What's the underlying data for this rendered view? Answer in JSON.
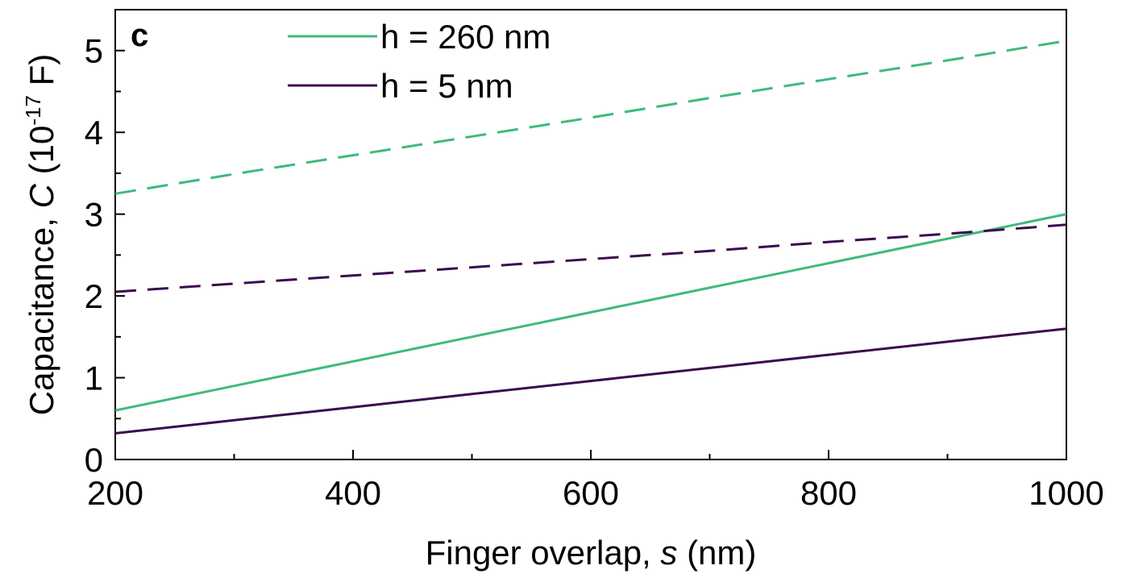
{
  "chart_data": {
    "type": "line",
    "panel_label": "c",
    "xlabel": {
      "prefix": "Finger overlap, ",
      "symbol": "s",
      "suffix": " (nm)"
    },
    "ylabel": {
      "prefix": "Capacitance, ",
      "symbol": "C",
      "unit_open": " (10",
      "unit_exp": "-17",
      "unit_close": " F)"
    },
    "xlim": [
      200,
      1000
    ],
    "ylim": [
      0,
      5.5
    ],
    "xticks": [
      200,
      400,
      600,
      800,
      1000
    ],
    "xticks_minor": [
      300,
      500,
      700,
      900
    ],
    "yticks": [
      0,
      1,
      2,
      3,
      4,
      5
    ],
    "yticks_minor": [
      0.5,
      1.5,
      2.5,
      3.5,
      4.5
    ],
    "legend": {
      "placement": "top-left",
      "entries": [
        {
          "label": "h = 260 nm",
          "color": "#3dba7d"
        },
        {
          "label": "h = 5 nm",
          "color": "#3b0a4f"
        }
      ]
    },
    "series": [
      {
        "h": "260 nm",
        "style": "solid",
        "color": "#3dba7d",
        "x": [
          200,
          300,
          400,
          500,
          600,
          700,
          800,
          900,
          1000
        ],
        "values": [
          0.6,
          0.9,
          1.2,
          1.5,
          1.8,
          2.1,
          2.4,
          2.7,
          3.0
        ]
      },
      {
        "h": "5 nm",
        "style": "solid",
        "color": "#3b0a4f",
        "x": [
          200,
          300,
          400,
          500,
          600,
          700,
          800,
          900,
          1000
        ],
        "values": [
          0.32,
          0.48,
          0.64,
          0.8,
          0.96,
          1.12,
          1.28,
          1.44,
          1.6
        ]
      },
      {
        "h": "260 nm",
        "style": "dashed",
        "color": "#3dba7d",
        "x": [
          200,
          300,
          400,
          500,
          600,
          700,
          800,
          900,
          1000
        ],
        "values": [
          3.25,
          3.49,
          3.72,
          3.95,
          4.18,
          4.42,
          4.65,
          4.88,
          5.12
        ]
      },
      {
        "h": "5 nm",
        "style": "dashed",
        "color": "#3b0a4f",
        "x": [
          200,
          300,
          400,
          500,
          600,
          700,
          800,
          900,
          1000
        ],
        "values": [
          2.05,
          2.15,
          2.25,
          2.35,
          2.45,
          2.55,
          2.66,
          2.76,
          2.87
        ]
      }
    ]
  }
}
